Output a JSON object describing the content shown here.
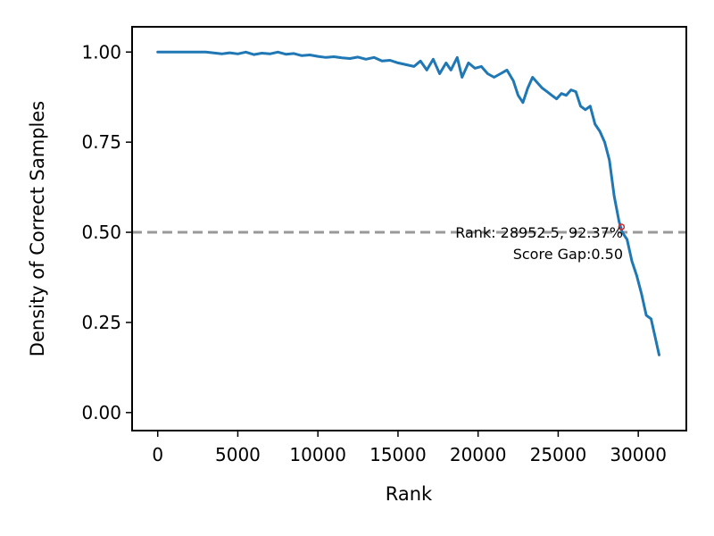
{
  "chart_data": {
    "type": "line",
    "title": "",
    "xlabel": "Rank",
    "ylabel": "Density of Correct Samples",
    "xlim": [
      -1600,
      33000
    ],
    "ylim": [
      -0.05,
      1.07
    ],
    "x_ticks": [
      0,
      5000,
      10000,
      15000,
      20000,
      25000,
      30000
    ],
    "x_tick_labels": [
      "0",
      "5000",
      "10000",
      "15000",
      "20000",
      "25000",
      "30000"
    ],
    "y_ticks": [
      0.0,
      0.25,
      0.5,
      0.75,
      1.0
    ],
    "y_tick_labels": [
      "0.00",
      "0.25",
      "0.50",
      "0.75",
      "1.00"
    ],
    "grid": false,
    "line_color": "#1f77b4",
    "reference_line": {
      "y": 0.5,
      "style": "dashed",
      "color": "#999999"
    },
    "marker": {
      "x": 28952.5,
      "y": 0.5,
      "color": "#d62728"
    },
    "annotation": {
      "line1": "Rank: 28952.5, 92.37%",
      "line2": "Score Gap:0.50"
    },
    "series": [
      {
        "x": [
          0,
          1000,
          2000,
          3000,
          4000,
          4500,
          5000,
          5500,
          6000,
          6500,
          7000,
          7500,
          8000,
          8500,
          9000,
          9500,
          10000,
          10500,
          11000,
          11500,
          12000,
          12500,
          13000,
          13500,
          14000,
          14500,
          15000,
          15500,
          16000,
          16400,
          16800,
          17200,
          17600,
          18000,
          18300,
          18700,
          19000,
          19400,
          19800,
          20200,
          20600,
          21000,
          21400,
          21800,
          22200,
          22500,
          22800,
          23100,
          23400,
          23700,
          24000,
          24300,
          24600,
          24900,
          25200,
          25500,
          25800,
          26100,
          26400,
          26700,
          27000,
          27300,
          27600,
          27900,
          28200,
          28500,
          28800,
          29000,
          29300,
          29600,
          29900,
          30200,
          30500,
          30800,
          31100,
          31300
        ],
        "y": [
          1.0,
          1.0,
          1.0,
          1.0,
          0.995,
          0.998,
          0.995,
          1.0,
          0.993,
          0.997,
          0.995,
          1.0,
          0.994,
          0.996,
          0.99,
          0.992,
          0.988,
          0.985,
          0.987,
          0.984,
          0.982,
          0.986,
          0.98,
          0.985,
          0.975,
          0.977,
          0.97,
          0.965,
          0.96,
          0.975,
          0.95,
          0.98,
          0.94,
          0.97,
          0.95,
          0.985,
          0.93,
          0.97,
          0.955,
          0.96,
          0.94,
          0.93,
          0.94,
          0.95,
          0.92,
          0.88,
          0.86,
          0.9,
          0.93,
          0.915,
          0.9,
          0.89,
          0.88,
          0.87,
          0.885,
          0.88,
          0.895,
          0.89,
          0.85,
          0.84,
          0.85,
          0.8,
          0.78,
          0.75,
          0.7,
          0.6,
          0.53,
          0.5,
          0.48,
          0.42,
          0.38,
          0.33,
          0.27,
          0.26,
          0.2,
          0.16
        ]
      }
    ]
  }
}
